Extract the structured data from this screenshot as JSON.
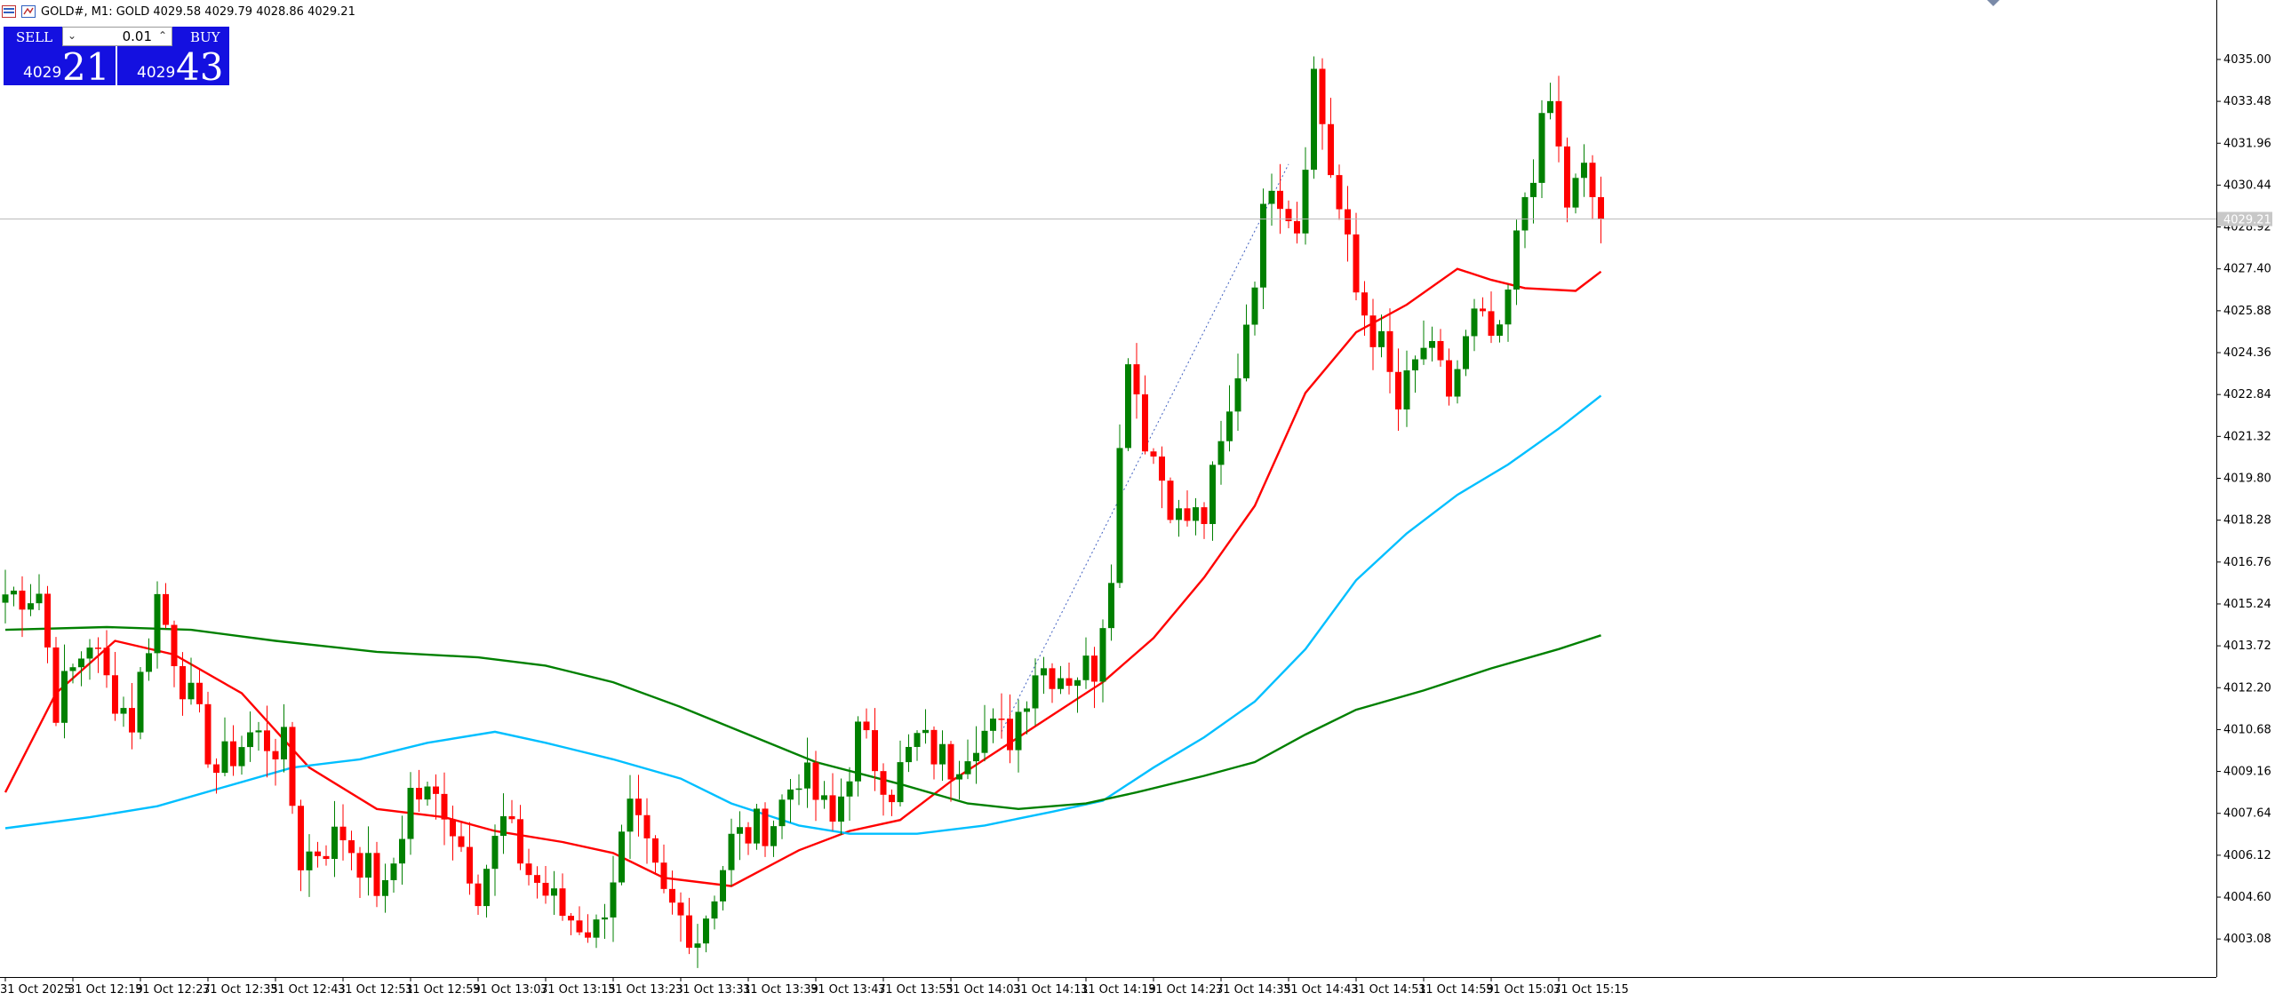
{
  "header": {
    "title": "GOLD#, M1:  GOLD  4029.58 4029.79 4028.86 4029.21"
  },
  "trade_panel": {
    "sell_label": "SELL",
    "buy_label": "BUY",
    "lot_value": "0.01",
    "sell_small": "4029",
    "sell_big": "21",
    "buy_small": "4029",
    "buy_big": "43",
    "color": "#1410e0"
  },
  "chart_data": {
    "type": "candlestick",
    "symbol": "GOLD#",
    "timeframe": "M1",
    "ylim": [
      4001.7,
      4036.9
    ],
    "y_ticks": [
      "4035.00",
      "4033.48",
      "4031.96",
      "4030.44",
      "4028.92",
      "4027.40",
      "4025.88",
      "4024.36",
      "4022.84",
      "4021.32",
      "4019.80",
      "4018.28",
      "4016.76",
      "4015.24",
      "4013.72",
      "4012.20",
      "4010.68",
      "4009.16",
      "4007.64",
      "4006.12",
      "4004.60",
      "4003.08"
    ],
    "x_labels": [
      "31 Oct 2025",
      "31 Oct 12:19",
      "31 Oct 12:27",
      "31 Oct 12:35",
      "31 Oct 12:43",
      "31 Oct 12:51",
      "31 Oct 12:59",
      "31 Oct 13:07",
      "31 Oct 13:15",
      "31 Oct 13:23",
      "31 Oct 13:31",
      "31 Oct 13:39",
      "31 Oct 13:47",
      "31 Oct 13:55",
      "31 Oct 14:03",
      "31 Oct 14:11",
      "31 Oct 14:19",
      "31 Oct 14:27",
      "31 Oct 14:35",
      "31 Oct 14:43",
      "31 Oct 14:51",
      "31 Oct 14:59",
      "31 Oct 15:07",
      "31 Oct 15:15"
    ],
    "current_price": "4029.21",
    "colors": {
      "up": "#008000",
      "down": "#ff0000",
      "ma_fast": "#ff0000",
      "ma_mid": "#00bfff",
      "ma_slow": "#008000"
    },
    "keypoints": [
      {
        "i": 0,
        "p": 4015.6
      },
      {
        "i": 4,
        "p": 4015.7
      },
      {
        "i": 6,
        "p": 4011.6
      },
      {
        "i": 10,
        "p": 4014.0
      },
      {
        "i": 12,
        "p": 4012.4
      },
      {
        "i": 15,
        "p": 4011.0
      },
      {
        "i": 18,
        "p": 4015.5
      },
      {
        "i": 21,
        "p": 4012.5
      },
      {
        "i": 25,
        "p": 4009.2
      },
      {
        "i": 29,
        "p": 4010.5
      },
      {
        "i": 33,
        "p": 4010.0
      },
      {
        "i": 35,
        "p": 4006.0
      },
      {
        "i": 40,
        "p": 4006.9
      },
      {
        "i": 45,
        "p": 4004.6
      },
      {
        "i": 48,
        "p": 4008.4
      },
      {
        "i": 52,
        "p": 4008.0
      },
      {
        "i": 56,
        "p": 4005.0
      },
      {
        "i": 59,
        "p": 4007.3
      },
      {
        "i": 62,
        "p": 4005.5
      },
      {
        "i": 66,
        "p": 4004.0
      },
      {
        "i": 70,
        "p": 4003.4
      },
      {
        "i": 74,
        "p": 4007.6
      },
      {
        "i": 78,
        "p": 4004.5
      },
      {
        "i": 82,
        "p": 4003.2
      },
      {
        "i": 86,
        "p": 4006.6
      },
      {
        "i": 91,
        "p": 4007.4
      },
      {
        "i": 94,
        "p": 4009.2
      },
      {
        "i": 98,
        "p": 4007.2
      },
      {
        "i": 101,
        "p": 4010.5
      },
      {
        "i": 105,
        "p": 4008.6
      },
      {
        "i": 108,
        "p": 4010.3
      },
      {
        "i": 112,
        "p": 4009.4
      },
      {
        "i": 115,
        "p": 4010.6
      },
      {
        "i": 119,
        "p": 4010.5
      },
      {
        "i": 122,
        "p": 4013.0
      },
      {
        "i": 126,
        "p": 4012.7
      },
      {
        "i": 129,
        "p": 4013.0
      },
      {
        "i": 131,
        "p": 4016.8
      },
      {
        "i": 133,
        "p": 4024.6
      },
      {
        "i": 135,
        "p": 4021.4
      },
      {
        "i": 139,
        "p": 4018.3
      },
      {
        "i": 142,
        "p": 4018.4
      },
      {
        "i": 145,
        "p": 4022.0
      },
      {
        "i": 148,
        "p": 4027.4
      },
      {
        "i": 150,
        "p": 4030.9
      },
      {
        "i": 153,
        "p": 4029.0
      },
      {
        "i": 155,
        "p": 4034.5
      },
      {
        "i": 157,
        "p": 4031.0
      },
      {
        "i": 160,
        "p": 4026.5
      },
      {
        "i": 163,
        "p": 4024.5
      },
      {
        "i": 165,
        "p": 4022.3
      },
      {
        "i": 168,
        "p": 4024.6
      },
      {
        "i": 171,
        "p": 4022.9
      },
      {
        "i": 174,
        "p": 4025.5
      },
      {
        "i": 177,
        "p": 4024.6
      },
      {
        "i": 180,
        "p": 4030.1
      },
      {
        "i": 183,
        "p": 4033.4
      },
      {
        "i": 185,
        "p": 4029.8
      },
      {
        "i": 187,
        "p": 4030.8
      },
      {
        "i": 189,
        "p": 4029.2
      }
    ],
    "moving_averages": [
      {
        "name": "ma_fast",
        "color": "#ff0000",
        "points": [
          [
            0,
            4008.4
          ],
          [
            6,
            4012.0
          ],
          [
            13,
            4013.9
          ],
          [
            20,
            4013.4
          ],
          [
            28,
            4012.0
          ],
          [
            36,
            4009.3
          ],
          [
            44,
            4007.8
          ],
          [
            52,
            4007.5
          ],
          [
            58,
            4007.0
          ],
          [
            66,
            4006.6
          ],
          [
            72,
            4006.2
          ],
          [
            78,
            4005.3
          ],
          [
            86,
            4005.0
          ],
          [
            94,
            4006.3
          ],
          [
            100,
            4007.0
          ],
          [
            106,
            4007.4
          ],
          [
            112,
            4008.8
          ],
          [
            118,
            4010.0
          ],
          [
            124,
            4011.2
          ],
          [
            130,
            4012.4
          ],
          [
            136,
            4014.0
          ],
          [
            142,
            4016.2
          ],
          [
            148,
            4018.8
          ],
          [
            154,
            4022.9
          ],
          [
            160,
            4025.1
          ],
          [
            166,
            4026.1
          ],
          [
            172,
            4027.4
          ],
          [
            176,
            4027.0
          ],
          [
            180,
            4026.7
          ],
          [
            186,
            4026.6
          ],
          [
            189,
            4027.3
          ]
        ]
      },
      {
        "name": "ma_mid",
        "color": "#00bfff",
        "points": [
          [
            0,
            4007.1
          ],
          [
            10,
            4007.5
          ],
          [
            18,
            4007.9
          ],
          [
            26,
            4008.6
          ],
          [
            34,
            4009.3
          ],
          [
            42,
            4009.6
          ],
          [
            50,
            4010.2
          ],
          [
            58,
            4010.6
          ],
          [
            64,
            4010.2
          ],
          [
            72,
            4009.6
          ],
          [
            80,
            4008.9
          ],
          [
            86,
            4008.0
          ],
          [
            94,
            4007.2
          ],
          [
            100,
            4006.9
          ],
          [
            108,
            4006.9
          ],
          [
            116,
            4007.2
          ],
          [
            124,
            4007.7
          ],
          [
            130,
            4008.1
          ],
          [
            136,
            4009.3
          ],
          [
            142,
            4010.4
          ],
          [
            148,
            4011.7
          ],
          [
            154,
            4013.6
          ],
          [
            160,
            4016.1
          ],
          [
            166,
            4017.8
          ],
          [
            172,
            4019.2
          ],
          [
            178,
            4020.3
          ],
          [
            184,
            4021.6
          ],
          [
            189,
            4022.8
          ]
        ]
      },
      {
        "name": "ma_slow",
        "color": "#008000",
        "points": [
          [
            0,
            4014.3
          ],
          [
            12,
            4014.4
          ],
          [
            22,
            4014.3
          ],
          [
            32,
            4013.9
          ],
          [
            44,
            4013.5
          ],
          [
            56,
            4013.3
          ],
          [
            64,
            4013.0
          ],
          [
            72,
            4012.4
          ],
          [
            80,
            4011.5
          ],
          [
            88,
            4010.5
          ],
          [
            96,
            4009.5
          ],
          [
            106,
            4008.7
          ],
          [
            114,
            4008.0
          ],
          [
            120,
            4007.8
          ],
          [
            128,
            4008.0
          ],
          [
            134,
            4008.4
          ],
          [
            142,
            4009.0
          ],
          [
            148,
            4009.5
          ],
          [
            154,
            4010.5
          ],
          [
            160,
            4011.4
          ],
          [
            168,
            4012.1
          ],
          [
            176,
            4012.9
          ],
          [
            184,
            4013.6
          ],
          [
            189,
            4014.1
          ]
        ]
      }
    ],
    "grid": false,
    "legend": "none"
  }
}
